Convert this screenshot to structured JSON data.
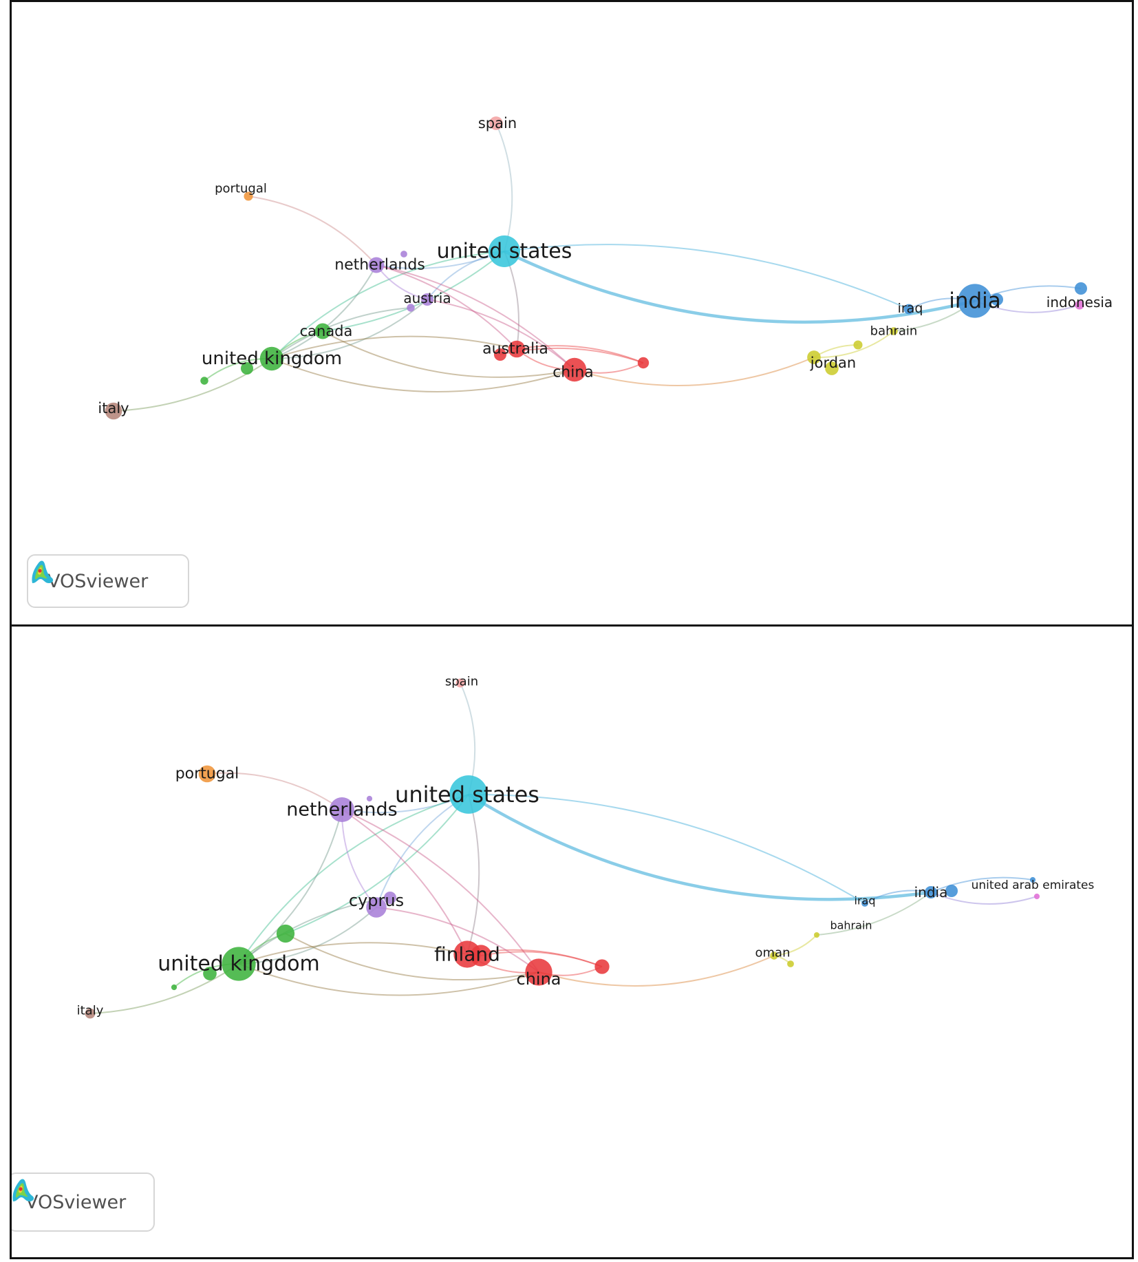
{
  "brand": {
    "logo_text": "VOSviewer"
  },
  "cluster_colors": {
    "red": "#e8393c",
    "green": "#3db33d",
    "cyan": "#38c6dc",
    "purple": "#a97fd8",
    "blue": "#3f8fd6",
    "yellow": "#cccc2e",
    "orange": "#f0953a",
    "pink_light": "#f4a3a3",
    "brown": "#b5857a",
    "magenta": "#e06fd6"
  },
  "panels": [
    {
      "id": "top",
      "nodes": [
        {
          "id": "us",
          "label": "united states",
          "color": "cyan",
          "weight": 28,
          "labelled": true
        },
        {
          "id": "in",
          "label": "india",
          "color": "blue",
          "weight": 30,
          "labelled": true
        },
        {
          "id": "uk",
          "label": "united kingdom",
          "color": "green",
          "weight": 21,
          "labelled": true
        },
        {
          "id": "ch",
          "label": "china",
          "color": "red",
          "weight": 21,
          "labelled": true
        },
        {
          "id": "au",
          "label": "australia",
          "color": "red",
          "weight": 15,
          "labelled": true
        },
        {
          "id": "au2",
          "label": "",
          "color": "red",
          "weight": 11,
          "labelled": false
        },
        {
          "id": "rd",
          "label": "",
          "color": "red",
          "weight": 10,
          "labelled": false
        },
        {
          "id": "ne",
          "label": "netherlands",
          "color": "purple",
          "weight": 14,
          "labelled": true
        },
        {
          "id": "at",
          "label": "austria",
          "color": "purple",
          "weight": 11,
          "labelled": true
        },
        {
          "id": "pu1",
          "label": "",
          "color": "purple",
          "weight": 7,
          "labelled": false
        },
        {
          "id": "pu2",
          "label": "",
          "color": "purple",
          "weight": 6,
          "labelled": false
        },
        {
          "id": "ca",
          "label": "canada",
          "color": "green",
          "weight": 14,
          "labelled": true
        },
        {
          "id": "gr1",
          "label": "",
          "color": "green",
          "weight": 11,
          "labelled": false
        },
        {
          "id": "gr2",
          "label": "",
          "color": "green",
          "weight": 7,
          "labelled": false
        },
        {
          "id": "sp",
          "label": "spain",
          "color": "pink_light",
          "weight": 12,
          "labelled": true
        },
        {
          "id": "po",
          "label": "portugal",
          "color": "orange",
          "weight": 8,
          "labelled": true
        },
        {
          "id": "it",
          "label": "italy",
          "color": "brown",
          "weight": 15,
          "labelled": true
        },
        {
          "id": "iq",
          "label": "iraq",
          "color": "blue",
          "weight": 9,
          "labelled": true
        },
        {
          "id": "in2",
          "label": "",
          "color": "blue",
          "weight": 11,
          "labelled": false
        },
        {
          "id": "id",
          "label": "indonesia",
          "color": "magenta",
          "weight": 8,
          "labelled": true
        },
        {
          "id": "id2",
          "label": "",
          "color": "blue",
          "weight": 11,
          "labelled": false
        },
        {
          "id": "bh",
          "label": "bahrain",
          "color": "yellow",
          "weight": 7,
          "labelled": true
        },
        {
          "id": "jo",
          "label": "jordan",
          "color": "yellow",
          "weight": 12,
          "labelled": true
        },
        {
          "id": "jo2",
          "label": "",
          "color": "yellow",
          "weight": 12,
          "labelled": false
        },
        {
          "id": "ye",
          "label": "",
          "color": "yellow",
          "weight": 8,
          "labelled": false
        }
      ],
      "links": [
        [
          "us",
          "in"
        ],
        [
          "us",
          "iq"
        ],
        [
          "us",
          "sp"
        ],
        [
          "us",
          "ne"
        ],
        [
          "us",
          "uk"
        ],
        [
          "us",
          "au"
        ],
        [
          "us",
          "at"
        ],
        [
          "us",
          "ca"
        ],
        [
          "in",
          "id"
        ],
        [
          "in",
          "id2"
        ],
        [
          "in",
          "iq"
        ],
        [
          "in",
          "bh"
        ],
        [
          "uk",
          "ne"
        ],
        [
          "uk",
          "ca"
        ],
        [
          "uk",
          "at"
        ],
        [
          "uk",
          "au"
        ],
        [
          "uk",
          "ch"
        ],
        [
          "uk",
          "it"
        ],
        [
          "uk",
          "gr2"
        ],
        [
          "uk",
          "pu1"
        ],
        [
          "ne",
          "po"
        ],
        [
          "ne",
          "au"
        ],
        [
          "ne",
          "at"
        ],
        [
          "ne",
          "ch"
        ],
        [
          "au",
          "ch"
        ],
        [
          "au",
          "rd"
        ],
        [
          "ch",
          "rd"
        ],
        [
          "au2",
          "rd"
        ],
        [
          "ch",
          "jo"
        ],
        [
          "jo",
          "ye"
        ],
        [
          "jo",
          "bh"
        ],
        [
          "at",
          "ch"
        ],
        [
          "ca",
          "ch"
        ]
      ]
    },
    {
      "id": "bottom",
      "nodes": [
        {
          "id": "us",
          "label": "united states",
          "color": "cyan",
          "weight": 34,
          "labelled": true
        },
        {
          "id": "uk",
          "label": "united kingdom",
          "color": "green",
          "weight": 30,
          "labelled": true
        },
        {
          "id": "gr1",
          "label": "",
          "color": "green",
          "weight": 16,
          "labelled": false
        },
        {
          "id": "gr2",
          "label": "",
          "color": "green",
          "weight": 12,
          "labelled": false
        },
        {
          "id": "gr3",
          "label": "",
          "color": "green",
          "weight": 5,
          "labelled": false
        },
        {
          "id": "fi",
          "label": "finland",
          "color": "red",
          "weight": 24,
          "labelled": true
        },
        {
          "id": "fi2",
          "label": "",
          "color": "red",
          "weight": 19,
          "labelled": false
        },
        {
          "id": "ch",
          "label": "china",
          "color": "red",
          "weight": 24,
          "labelled": true
        },
        {
          "id": "rd",
          "label": "",
          "color": "red",
          "weight": 13,
          "labelled": false
        },
        {
          "id": "ne",
          "label": "netherlands",
          "color": "purple",
          "weight": 22,
          "labelled": true
        },
        {
          "id": "cy",
          "label": "cyprus",
          "color": "purple",
          "weight": 18,
          "labelled": true
        },
        {
          "id": "pu1",
          "label": "",
          "color": "purple",
          "weight": 11,
          "labelled": false
        },
        {
          "id": "pu2",
          "label": "",
          "color": "purple",
          "weight": 5,
          "labelled": false
        },
        {
          "id": "sp",
          "label": "spain",
          "color": "pink_light",
          "weight": 8,
          "labelled": true
        },
        {
          "id": "po",
          "label": "portugal",
          "color": "orange",
          "weight": 15,
          "labelled": true
        },
        {
          "id": "it",
          "label": "italy",
          "color": "brown",
          "weight": 9,
          "labelled": true
        },
        {
          "id": "in",
          "label": "india",
          "color": "blue",
          "weight": 11,
          "labelled": true
        },
        {
          "id": "in2",
          "label": "",
          "color": "blue",
          "weight": 11,
          "labelled": false
        },
        {
          "id": "iq",
          "label": "iraq",
          "color": "blue",
          "weight": 6,
          "labelled": true
        },
        {
          "id": "ua",
          "label": "united arab emirates",
          "color": "magenta",
          "weight": 5,
          "labelled": true
        },
        {
          "id": "ua2",
          "label": "",
          "color": "blue",
          "weight": 5,
          "labelled": false
        },
        {
          "id": "bh",
          "label": "bahrain",
          "color": "yellow",
          "weight": 4,
          "labelled": true
        },
        {
          "id": "om",
          "label": "oman",
          "color": "yellow",
          "weight": 7,
          "labelled": true
        },
        {
          "id": "om2",
          "label": "",
          "color": "yellow",
          "weight": 6,
          "labelled": false
        }
      ],
      "links": [
        [
          "us",
          "in"
        ],
        [
          "us",
          "iq"
        ],
        [
          "us",
          "sp"
        ],
        [
          "us",
          "ne"
        ],
        [
          "us",
          "uk"
        ],
        [
          "us",
          "fi"
        ],
        [
          "us",
          "cy"
        ],
        [
          "us",
          "gr1"
        ],
        [
          "in",
          "ua"
        ],
        [
          "in",
          "ua2"
        ],
        [
          "in",
          "iq"
        ],
        [
          "in",
          "bh"
        ],
        [
          "uk",
          "ne"
        ],
        [
          "uk",
          "gr1"
        ],
        [
          "uk",
          "cy"
        ],
        [
          "uk",
          "fi"
        ],
        [
          "uk",
          "ch"
        ],
        [
          "uk",
          "it"
        ],
        [
          "uk",
          "gr3"
        ],
        [
          "uk",
          "pu1"
        ],
        [
          "ne",
          "po"
        ],
        [
          "ne",
          "fi"
        ],
        [
          "ne",
          "cy"
        ],
        [
          "ne",
          "ch"
        ],
        [
          "fi",
          "ch"
        ],
        [
          "fi",
          "rd"
        ],
        [
          "ch",
          "rd"
        ],
        [
          "fi2",
          "rd"
        ],
        [
          "ch",
          "om"
        ],
        [
          "om",
          "om2"
        ],
        [
          "om",
          "bh"
        ],
        [
          "cy",
          "ch"
        ],
        [
          "gr1",
          "ch"
        ]
      ]
    }
  ]
}
